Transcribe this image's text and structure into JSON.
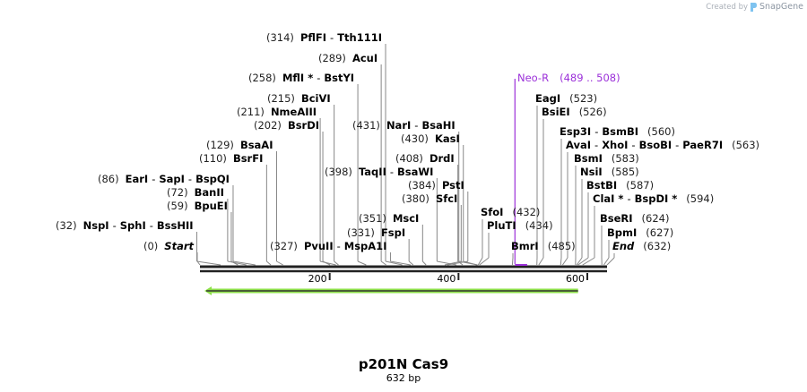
{
  "credit": {
    "prefix": "Created by",
    "brand": "SnapGene"
  },
  "sequence": {
    "name": "p201N Cas9",
    "length_label": "632 bp",
    "length": 632
  },
  "ruler": {
    "ticks": [
      {
        "bp": 200,
        "label": "200"
      },
      {
        "bp": 400,
        "label": "400"
      },
      {
        "bp": 600,
        "label": "600"
      }
    ]
  },
  "feature": {
    "name": "Neo-R",
    "range": "(489 .. 508)",
    "color": "#9b30d9",
    "start": 489,
    "end": 508
  },
  "orf_arrow": {
    "color": "#8ee04a",
    "direction": "reverse",
    "start": 0,
    "end": 587
  },
  "sites_left": [
    {
      "pos": "(314)",
      "names": [
        "PflFI",
        "Tth111I"
      ],
      "bp": 314
    },
    {
      "pos": "(289)",
      "names": [
        "AcuI"
      ],
      "bp": 289
    },
    {
      "pos": "(258)",
      "names": [
        "MflI *",
        "BstYI"
      ],
      "bp": 258
    },
    {
      "pos": "(215)",
      "names": [
        "BciVI"
      ],
      "bp": 215
    },
    {
      "pos": "(211)",
      "names": [
        "NmeAIII"
      ],
      "bp": 211
    },
    {
      "pos": "(202)",
      "names": [
        "BsrDI"
      ],
      "bp": 202
    },
    {
      "pos": "(431)",
      "names": [
        "NarI",
        "BsaHI"
      ],
      "bp": 431
    },
    {
      "pos": "(430)",
      "names": [
        "KasI"
      ],
      "bp": 430
    },
    {
      "pos": "(129)",
      "names": [
        "BsaAI"
      ],
      "bp": 129
    },
    {
      "pos": "(110)",
      "names": [
        "BsrFI"
      ],
      "bp": 110
    },
    {
      "pos": "(408)",
      "names": [
        "DrdI"
      ],
      "bp": 408
    },
    {
      "pos": "(398)",
      "names": [
        "TaqII",
        "BsaWI"
      ],
      "bp": 398
    },
    {
      "pos": "(86)",
      "names": [
        "EarI",
        "SapI",
        "BspQI"
      ],
      "bp": 86
    },
    {
      "pos": "(384)",
      "names": [
        "PstI"
      ],
      "bp": 384
    },
    {
      "pos": "(72)",
      "names": [
        "BanII"
      ],
      "bp": 72
    },
    {
      "pos": "(380)",
      "names": [
        "SfcI"
      ],
      "bp": 380
    },
    {
      "pos": "(59)",
      "names": [
        "BpuEI"
      ],
      "bp": 59
    },
    {
      "pos": "(351)",
      "names": [
        "MscI"
      ],
      "bp": 351
    },
    {
      "pos": "(32)",
      "names": [
        "NspI",
        "SphI",
        "BssHII"
      ],
      "bp": 32
    },
    {
      "pos": "(331)",
      "names": [
        "FspI"
      ],
      "bp": 331
    },
    {
      "pos": "(0)",
      "names": [
        "Start"
      ],
      "bp": 0,
      "italic": true
    },
    {
      "pos": "(327)",
      "names": [
        "PvuII",
        "MspA1I"
      ],
      "bp": 327
    }
  ],
  "sites_right": [
    {
      "pos": "(523)",
      "names": [
        "EagI"
      ],
      "bp": 523
    },
    {
      "pos": "(526)",
      "names": [
        "BsiEI"
      ],
      "bp": 526
    },
    {
      "pos": "(560)",
      "names": [
        "Esp3I",
        "BsmBI"
      ],
      "bp": 560
    },
    {
      "pos": "(563)",
      "names": [
        "AvaI",
        "XhoI",
        "BsoBI",
        "PaeR7I"
      ],
      "bp": 563
    },
    {
      "pos": "(583)",
      "names": [
        "BsmI"
      ],
      "bp": 583
    },
    {
      "pos": "(585)",
      "names": [
        "NsiI"
      ],
      "bp": 585
    },
    {
      "pos": "(587)",
      "names": [
        "BstBI"
      ],
      "bp": 587
    },
    {
      "pos": "(594)",
      "names": [
        "ClaI *",
        "BspDI *"
      ],
      "bp": 594
    },
    {
      "pos": "(432)",
      "names": [
        "SfoI"
      ],
      "bp": 432
    },
    {
      "pos": "(434)",
      "names": [
        "PluTI"
      ],
      "bp": 434
    },
    {
      "pos": "(624)",
      "names": [
        "BseRI"
      ],
      "bp": 624
    },
    {
      "pos": "(627)",
      "names": [
        "BpmI"
      ],
      "bp": 627
    },
    {
      "pos": "(485)",
      "names": [
        "BmrI"
      ],
      "bp": 485
    },
    {
      "pos": "(632)",
      "names": [
        "End"
      ],
      "bp": 632,
      "italic": true
    }
  ]
}
